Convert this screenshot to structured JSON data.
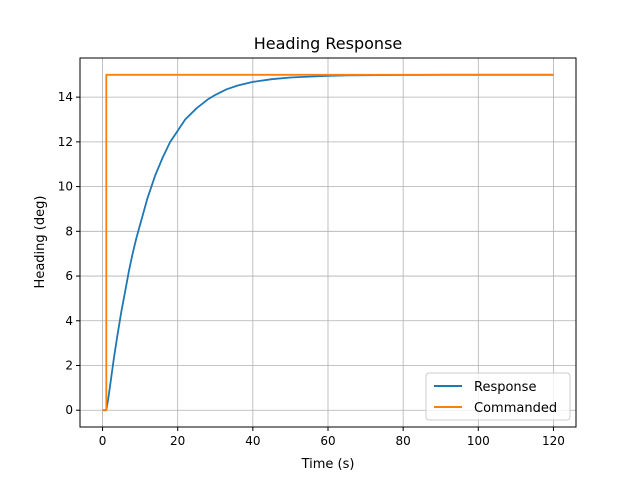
{
  "chart_data": {
    "type": "line",
    "title": "Heading Response",
    "xlabel": "Time (s)",
    "ylabel": "Heading (deg)",
    "xlim": [
      -6,
      126
    ],
    "ylim": [
      -0.75,
      15.75
    ],
    "xticks": [
      0,
      20,
      40,
      60,
      80,
      100,
      120
    ],
    "yticks": [
      0,
      2,
      4,
      6,
      8,
      10,
      12,
      14
    ],
    "grid": true,
    "legend_position": "lower-right",
    "series": [
      {
        "name": "Response",
        "color": "#1f77b4",
        "x": [
          0,
          1,
          1.5,
          2,
          3,
          4,
          5,
          6,
          7,
          8,
          9,
          10,
          12,
          14,
          16,
          18,
          20,
          22,
          25,
          28,
          30,
          33,
          36,
          40,
          45,
          50,
          55,
          60,
          65,
          70,
          80,
          90,
          100,
          110,
          120
        ],
        "y": [
          0,
          0,
          0.5,
          1.1,
          2.3,
          3.4,
          4.4,
          5.3,
          6.2,
          7.0,
          7.7,
          8.3,
          9.5,
          10.5,
          11.3,
          12.0,
          12.5,
          13.0,
          13.5,
          13.9,
          14.1,
          14.35,
          14.52,
          14.68,
          14.8,
          14.88,
          14.92,
          14.95,
          14.97,
          14.98,
          14.99,
          15.0,
          15.0,
          15.0,
          15.0
        ]
      },
      {
        "name": "Commanded",
        "color": "#ff7f0e",
        "x": [
          0,
          1,
          1,
          120
        ],
        "y": [
          0,
          0,
          15,
          15
        ]
      }
    ]
  }
}
